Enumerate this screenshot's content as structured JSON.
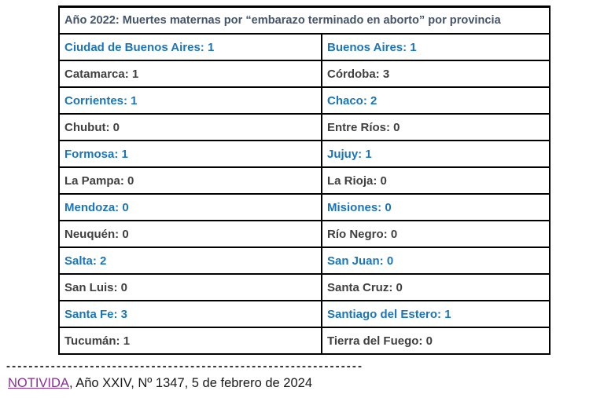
{
  "colors": {
    "highlight_blue": "#1B75BC",
    "body_text_dark": "#404040",
    "title_text": "#44546A",
    "link_purple": "#8B2F97",
    "table_border": "#000000"
  },
  "table": {
    "title": "Año 2022: Muertes maternas por “embarazo terminado en aborto” por provincia",
    "rows": [
      {
        "highlight": true,
        "cells": [
          {
            "province": "Ciudad de Buenos Aires",
            "value": 1,
            "text": "Ciudad de Buenos Aires: 1"
          },
          {
            "province": "Buenos Aires",
            "value": 1,
            "text": "Buenos Aires: 1"
          }
        ]
      },
      {
        "highlight": false,
        "cells": [
          {
            "province": "Catamarca",
            "value": 1,
            "text": "Catamarca: 1"
          },
          {
            "province": "Córdoba",
            "value": 3,
            "text": "Córdoba: 3"
          }
        ]
      },
      {
        "highlight": true,
        "cells": [
          {
            "province": "Corrientes",
            "value": 1,
            "text": "Corrientes: 1"
          },
          {
            "province": "Chaco",
            "value": 2,
            "text": "Chaco: 2"
          }
        ]
      },
      {
        "highlight": false,
        "cells": [
          {
            "province": "Chubut",
            "value": 0,
            "text": "Chubut: 0"
          },
          {
            "province": "Entre Ríos",
            "value": 0,
            "text": "Entre Ríos: 0"
          }
        ]
      },
      {
        "highlight": true,
        "cells": [
          {
            "province": "Formosa",
            "value": 1,
            "text": "Formosa: 1"
          },
          {
            "province": "Jujuy",
            "value": 1,
            "text": "Jujuy: 1"
          }
        ]
      },
      {
        "highlight": false,
        "cells": [
          {
            "province": "La Pampa",
            "value": 0,
            "text": "La Pampa: 0"
          },
          {
            "province": "La Rioja",
            "value": 0,
            "text": "La Rioja: 0"
          }
        ]
      },
      {
        "highlight": true,
        "cells": [
          {
            "province": "Mendoza",
            "value": 0,
            "text": "Mendoza: 0"
          },
          {
            "province": "Misiones",
            "value": 0,
            "text": "Misiones: 0"
          }
        ]
      },
      {
        "highlight": false,
        "cells": [
          {
            "province": "Neuquén",
            "value": 0,
            "text": "Neuquén: 0"
          },
          {
            "province": "Río Negro",
            "value": 0,
            "text": "Río Negro: 0"
          }
        ]
      },
      {
        "highlight": true,
        "cells": [
          {
            "province": "Salta",
            "value": 2,
            "text": "Salta: 2"
          },
          {
            "province": "San Juan",
            "value": 0,
            "text": "San Juan: 0"
          }
        ]
      },
      {
        "highlight": false,
        "cells": [
          {
            "province": "San Luis",
            "value": 0,
            "text": "San Luis: 0"
          },
          {
            "province": "Santa Cruz",
            "value": 0,
            "text": "Santa Cruz: 0"
          }
        ]
      },
      {
        "highlight": true,
        "cells": [
          {
            "province": "Santa Fe",
            "value": 3,
            "text": "Santa Fe: 3"
          },
          {
            "province": "Santiago del Estero",
            "value": 1,
            "text": "Santiago del Estero: 1"
          }
        ]
      },
      {
        "highlight": false,
        "cells": [
          {
            "province": "Tucumán",
            "value": 1,
            "text": "Tucumán: 1"
          },
          {
            "province": "Tierra del Fuego",
            "value": 0,
            "text": "Tierra del Fuego: 0"
          }
        ]
      }
    ]
  },
  "separator": {
    "dashes": "----------------------------------------------------------------"
  },
  "footer": {
    "link_text": "NOTIVIDA",
    "suffix": ", Año XXIV, Nº 1347, 5 de febrero de 2024"
  }
}
